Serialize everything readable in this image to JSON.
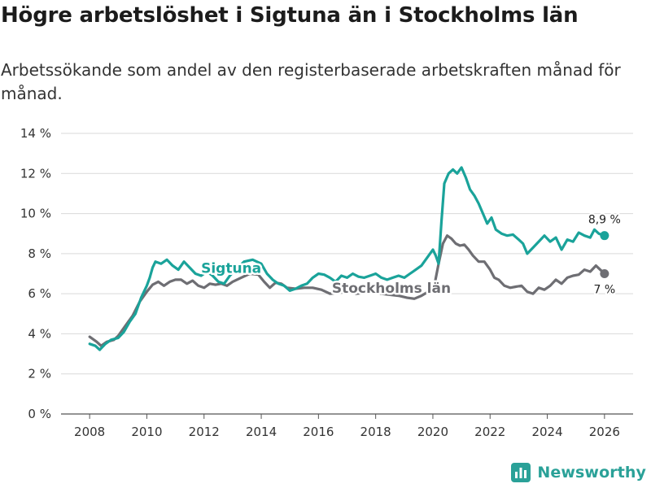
{
  "header": {
    "title": "Högre arbetslöshet i Sigtuna än i Stockholms län",
    "subtitle": "Arbetssökande som andel av den registerbaserade arbetskraften månad för månad."
  },
  "brand": {
    "name": "Newsworthy",
    "icon": "bar-chart-logo-icon",
    "color": "#2aa198"
  },
  "chart_data": {
    "type": "line",
    "title": "Högre arbetslöshet i Sigtuna än i Stockholms län",
    "xlabel": "",
    "ylabel": "",
    "xlim": [
      2007,
      2027
    ],
    "ylim": [
      0,
      14
    ],
    "grid": true,
    "legend": "inline labels",
    "x_ticks": [
      2008,
      2010,
      2012,
      2014,
      2016,
      2018,
      2020,
      2022,
      2024,
      2026
    ],
    "x_tick_labels": [
      "2008",
      "2010",
      "2012",
      "2014",
      "2016",
      "2018",
      "2020",
      "2022",
      "2024",
      "2026"
    ],
    "y_ticks": [
      0,
      2,
      4,
      6,
      8,
      10,
      12,
      14
    ],
    "y_tick_labels": [
      "0 %",
      "2 %",
      "4 %",
      "6 %",
      "8 %",
      "10 %",
      "12 %",
      "14 %"
    ],
    "series": [
      {
        "name": "Stockholms län",
        "label": "Stockholms län",
        "color": "#6e6e73",
        "end_label": "7 %",
        "end_value": 7.0,
        "points": [
          [
            2008.0,
            3.85
          ],
          [
            2008.25,
            3.6
          ],
          [
            2008.4,
            3.4
          ],
          [
            2008.6,
            3.6
          ],
          [
            2008.85,
            3.7
          ],
          [
            2009.0,
            3.9
          ],
          [
            2009.25,
            4.4
          ],
          [
            2009.5,
            4.9
          ],
          [
            2009.75,
            5.6
          ],
          [
            2010.0,
            6.1
          ],
          [
            2010.2,
            6.45
          ],
          [
            2010.4,
            6.6
          ],
          [
            2010.6,
            6.4
          ],
          [
            2010.8,
            6.6
          ],
          [
            2011.0,
            6.7
          ],
          [
            2011.2,
            6.7
          ],
          [
            2011.4,
            6.5
          ],
          [
            2011.6,
            6.65
          ],
          [
            2011.8,
            6.4
          ],
          [
            2012.0,
            6.3
          ],
          [
            2012.2,
            6.5
          ],
          [
            2012.4,
            6.45
          ],
          [
            2012.6,
            6.5
          ],
          [
            2012.8,
            6.4
          ],
          [
            2013.0,
            6.6
          ],
          [
            2013.3,
            6.8
          ],
          [
            2013.6,
            7.0
          ],
          [
            2013.9,
            6.95
          ],
          [
            2014.1,
            6.6
          ],
          [
            2014.3,
            6.3
          ],
          [
            2014.5,
            6.55
          ],
          [
            2014.7,
            6.5
          ],
          [
            2014.9,
            6.3
          ],
          [
            2015.2,
            6.25
          ],
          [
            2015.5,
            6.3
          ],
          [
            2015.8,
            6.3
          ],
          [
            2016.1,
            6.2
          ],
          [
            2016.4,
            6.0
          ],
          [
            2016.7,
            6.05
          ],
          [
            2017.0,
            6.1
          ],
          [
            2017.3,
            6.0
          ],
          [
            2017.6,
            6.05
          ],
          [
            2017.9,
            6.1
          ],
          [
            2018.2,
            6.0
          ],
          [
            2018.5,
            5.95
          ],
          [
            2018.8,
            5.9
          ],
          [
            2019.1,
            5.8
          ],
          [
            2019.35,
            5.75
          ],
          [
            2019.6,
            5.9
          ],
          [
            2019.9,
            6.15
          ],
          [
            2020.05,
            6.4
          ],
          [
            2020.2,
            7.5
          ],
          [
            2020.35,
            8.5
          ],
          [
            2020.5,
            8.9
          ],
          [
            2020.65,
            8.75
          ],
          [
            2020.8,
            8.5
          ],
          [
            2020.95,
            8.4
          ],
          [
            2021.1,
            8.45
          ],
          [
            2021.25,
            8.2
          ],
          [
            2021.4,
            7.9
          ],
          [
            2021.6,
            7.6
          ],
          [
            2021.8,
            7.6
          ],
          [
            2022.0,
            7.2
          ],
          [
            2022.15,
            6.8
          ],
          [
            2022.3,
            6.7
          ],
          [
            2022.5,
            6.4
          ],
          [
            2022.7,
            6.3
          ],
          [
            2022.9,
            6.35
          ],
          [
            2023.1,
            6.4
          ],
          [
            2023.3,
            6.1
          ],
          [
            2023.5,
            6.0
          ],
          [
            2023.7,
            6.3
          ],
          [
            2023.9,
            6.2
          ],
          [
            2024.1,
            6.4
          ],
          [
            2024.3,
            6.7
          ],
          [
            2024.5,
            6.5
          ],
          [
            2024.7,
            6.8
          ],
          [
            2024.9,
            6.9
          ],
          [
            2025.1,
            6.95
          ],
          [
            2025.3,
            7.2
          ],
          [
            2025.5,
            7.1
          ],
          [
            2025.7,
            7.4
          ],
          [
            2025.85,
            7.2
          ],
          [
            2026.0,
            7.0
          ]
        ]
      },
      {
        "name": "Sigtuna",
        "label": "Sigtuna",
        "color": "#1aa39a",
        "end_label": "8,9 %",
        "end_value": 8.9,
        "points": [
          [
            2008.0,
            3.5
          ],
          [
            2008.2,
            3.4
          ],
          [
            2008.35,
            3.2
          ],
          [
            2008.55,
            3.5
          ],
          [
            2008.75,
            3.7
          ],
          [
            2009.0,
            3.8
          ],
          [
            2009.2,
            4.1
          ],
          [
            2009.4,
            4.6
          ],
          [
            2009.6,
            5.0
          ],
          [
            2009.8,
            5.8
          ],
          [
            2010.0,
            6.4
          ],
          [
            2010.1,
            6.8
          ],
          [
            2010.2,
            7.3
          ],
          [
            2010.3,
            7.6
          ],
          [
            2010.5,
            7.5
          ],
          [
            2010.7,
            7.7
          ],
          [
            2010.9,
            7.4
          ],
          [
            2011.1,
            7.2
          ],
          [
            2011.3,
            7.6
          ],
          [
            2011.5,
            7.3
          ],
          [
            2011.7,
            7.0
          ],
          [
            2011.9,
            6.9
          ],
          [
            2012.1,
            7.1
          ],
          [
            2012.3,
            6.9
          ],
          [
            2012.5,
            6.6
          ],
          [
            2012.7,
            6.5
          ],
          [
            2012.9,
            6.9
          ],
          [
            2013.1,
            7.2
          ],
          [
            2013.4,
            7.6
          ],
          [
            2013.7,
            7.7
          ],
          [
            2014.0,
            7.5
          ],
          [
            2014.2,
            7.0
          ],
          [
            2014.4,
            6.7
          ],
          [
            2014.6,
            6.5
          ],
          [
            2014.8,
            6.4
          ],
          [
            2015.0,
            6.15
          ],
          [
            2015.2,
            6.25
          ],
          [
            2015.4,
            6.4
          ],
          [
            2015.6,
            6.5
          ],
          [
            2015.8,
            6.8
          ],
          [
            2016.0,
            7.0
          ],
          [
            2016.2,
            6.95
          ],
          [
            2016.4,
            6.8
          ],
          [
            2016.6,
            6.6
          ],
          [
            2016.8,
            6.9
          ],
          [
            2017.0,
            6.8
          ],
          [
            2017.2,
            7.0
          ],
          [
            2017.4,
            6.85
          ],
          [
            2017.6,
            6.8
          ],
          [
            2017.8,
            6.9
          ],
          [
            2018.0,
            7.0
          ],
          [
            2018.2,
            6.8
          ],
          [
            2018.4,
            6.7
          ],
          [
            2018.6,
            6.8
          ],
          [
            2018.8,
            6.9
          ],
          [
            2019.0,
            6.8
          ],
          [
            2019.2,
            7.0
          ],
          [
            2019.4,
            7.2
          ],
          [
            2019.6,
            7.4
          ],
          [
            2019.8,
            7.8
          ],
          [
            2020.0,
            8.2
          ],
          [
            2020.1,
            7.9
          ],
          [
            2020.2,
            7.5
          ],
          [
            2020.3,
            9.6
          ],
          [
            2020.4,
            11.5
          ],
          [
            2020.55,
            12.0
          ],
          [
            2020.7,
            12.2
          ],
          [
            2020.85,
            12.0
          ],
          [
            2021.0,
            12.3
          ],
          [
            2021.15,
            11.8
          ],
          [
            2021.3,
            11.2
          ],
          [
            2021.45,
            10.9
          ],
          [
            2021.6,
            10.5
          ],
          [
            2021.75,
            10.0
          ],
          [
            2021.9,
            9.5
          ],
          [
            2022.05,
            9.8
          ],
          [
            2022.2,
            9.2
          ],
          [
            2022.4,
            9.0
          ],
          [
            2022.6,
            8.9
          ],
          [
            2022.8,
            8.95
          ],
          [
            2023.0,
            8.7
          ],
          [
            2023.15,
            8.5
          ],
          [
            2023.3,
            8.0
          ],
          [
            2023.5,
            8.3
          ],
          [
            2023.7,
            8.6
          ],
          [
            2023.9,
            8.9
          ],
          [
            2024.1,
            8.6
          ],
          [
            2024.3,
            8.8
          ],
          [
            2024.5,
            8.2
          ],
          [
            2024.7,
            8.7
          ],
          [
            2024.9,
            8.6
          ],
          [
            2025.1,
            9.05
          ],
          [
            2025.3,
            8.9
          ],
          [
            2025.5,
            8.8
          ],
          [
            2025.65,
            9.2
          ],
          [
            2025.8,
            9.0
          ],
          [
            2026.0,
            8.9
          ]
        ]
      }
    ]
  }
}
